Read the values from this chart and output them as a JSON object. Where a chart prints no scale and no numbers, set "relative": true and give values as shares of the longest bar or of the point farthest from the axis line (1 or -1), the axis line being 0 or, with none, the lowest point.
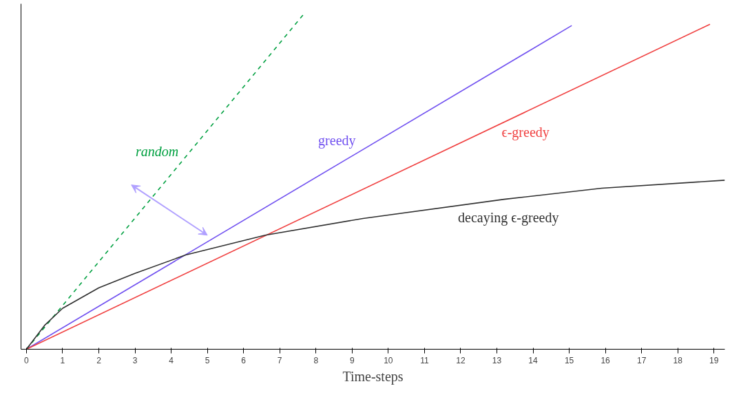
{
  "chart_data": {
    "type": "line",
    "relative": true,
    "xlabel": "Time-steps",
    "xlim": [
      -0.15,
      19.3
    ],
    "xticks": [
      0,
      1,
      2,
      3,
      4,
      5,
      6,
      7,
      8,
      9,
      10,
      11,
      12,
      13,
      14,
      15,
      16,
      17,
      18,
      19
    ],
    "grid": false,
    "legend": false,
    "marker": "none",
    "series": [
      {
        "name": "random",
        "color": "#00a040",
        "line_style": "dashed",
        "x": [
          0,
          7.67
        ],
        "values": [
          0,
          1.0
        ]
      },
      {
        "name": "greedy",
        "color": "#7050f0",
        "line_style": "solid",
        "x": [
          0,
          15.07
        ],
        "values": [
          0,
          0.965
        ]
      },
      {
        "name": "ϵ-greedy",
        "color": "#f04040",
        "line_style": "solid",
        "x": [
          0,
          18.89
        ],
        "values": [
          0,
          0.969
        ]
      },
      {
        "name": "decaying ϵ-greedy",
        "color": "#303030",
        "line_style": "solid",
        "x": [
          0,
          0.5,
          1,
          2,
          3,
          4.4,
          6.6,
          9.3,
          13.2,
          15.9,
          19.3
        ],
        "values": [
          0,
          0.071,
          0.122,
          0.183,
          0.226,
          0.281,
          0.34,
          0.39,
          0.447,
          0.48,
          0.504
        ]
      }
    ]
  }
}
